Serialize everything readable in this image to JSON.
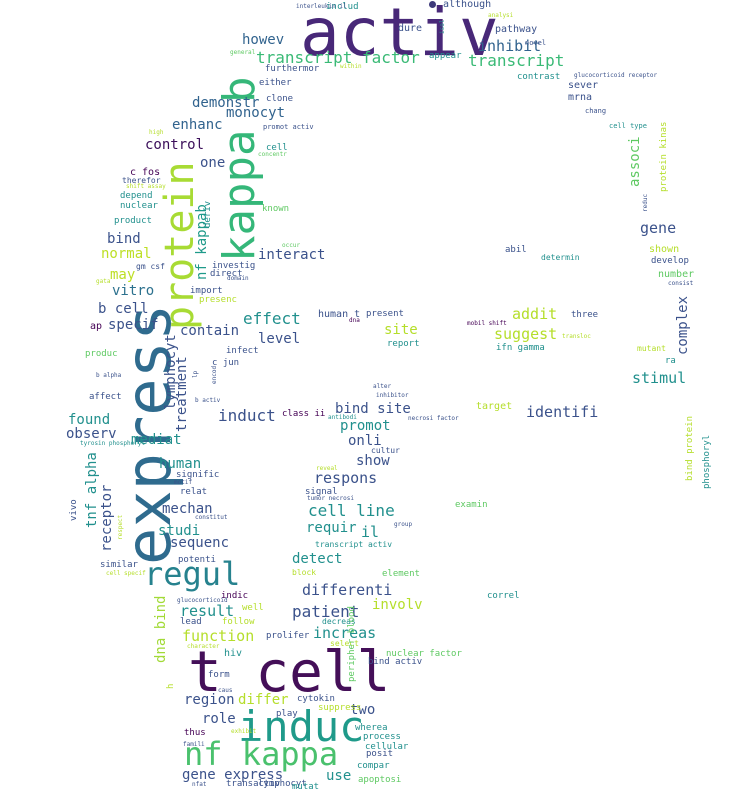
{
  "words": [
    {
      "t": "activ",
      "c": "#482878"
    },
    {
      "t": "express",
      "c": "#2f6b8e"
    },
    {
      "t": "kappa b",
      "c": "#35b779"
    },
    {
      "t": "protein",
      "c": "#a8db34"
    },
    {
      "t": "t cell",
      "c": "#440f58"
    },
    {
      "t": "induc",
      "c": "#1f9a8a"
    },
    {
      "t": "nf kappa",
      "c": "#4ac16d"
    },
    {
      "t": "regul",
      "c": "#26828e"
    },
    {
      "t": "transcript factor",
      "c": "#3aba76"
    },
    {
      "t": "transcript",
      "c": "#3aba76"
    },
    {
      "t": "inhibit",
      "c": "#31638e"
    },
    {
      "t": "howev",
      "c": "#31638e"
    },
    {
      "t": "demonstr",
      "c": "#31638e"
    },
    {
      "t": "monocyt",
      "c": "#31638e"
    },
    {
      "t": "enhanc",
      "c": "#31638e"
    },
    {
      "t": "control",
      "c": "#3b0f5a"
    },
    {
      "t": "one",
      "c": "#3b528b"
    },
    {
      "t": "c fos",
      "c": "#440154"
    },
    {
      "t": "bind",
      "c": "#3b528b"
    },
    {
      "t": "normal",
      "c": "#bddf26"
    },
    {
      "t": "may",
      "c": "#bddf26"
    },
    {
      "t": "vitro",
      "c": "#2c718e"
    },
    {
      "t": "b cell",
      "c": "#3b528b"
    },
    {
      "t": "specif",
      "c": "#3b528b"
    },
    {
      "t": "ap",
      "c": "#440154"
    },
    {
      "t": "nf kappab",
      "c": "#1f9a8a"
    },
    {
      "t": "interact",
      "c": "#3b528b"
    },
    {
      "t": "contain",
      "c": "#3b528b"
    },
    {
      "t": "effect",
      "c": "#21908d"
    },
    {
      "t": "level",
      "c": "#3b528b"
    },
    {
      "t": "lymphocyt",
      "c": "#3b528b"
    },
    {
      "t": "treatment",
      "c": "#3b528b"
    },
    {
      "t": "found",
      "c": "#21908d"
    },
    {
      "t": "observ",
      "c": "#3b528b"
    },
    {
      "t": "mediat",
      "c": "#21908d"
    },
    {
      "t": "induct",
      "c": "#3b528b"
    },
    {
      "t": "bind site",
      "c": "#3b528b"
    },
    {
      "t": "identifi",
      "c": "#3b528b"
    },
    {
      "t": "human",
      "c": "#21908d"
    },
    {
      "t": "tnf alpha",
      "c": "#21908d"
    },
    {
      "t": "receptor",
      "c": "#3b528b"
    },
    {
      "t": "mechan",
      "c": "#3b528b"
    },
    {
      "t": "studi",
      "c": "#21908d"
    },
    {
      "t": "sequenc",
      "c": "#3b528b"
    },
    {
      "t": "respons",
      "c": "#3b528b"
    },
    {
      "t": "cell line",
      "c": "#21908d"
    },
    {
      "t": "requir",
      "c": "#21908d"
    },
    {
      "t": "il",
      "c": "#21908d"
    },
    {
      "t": "show",
      "c": "#3b528b"
    },
    {
      "t": "onli",
      "c": "#3b528b"
    },
    {
      "t": "promot",
      "c": "#21908d"
    },
    {
      "t": "detect",
      "c": "#21908d"
    },
    {
      "t": "differenti",
      "c": "#3b528b"
    },
    {
      "t": "involv",
      "c": "#b5de2b"
    },
    {
      "t": "patient",
      "c": "#3b528b"
    },
    {
      "t": "increas",
      "c": "#21908d"
    },
    {
      "t": "result",
      "c": "#21908d"
    },
    {
      "t": "function",
      "c": "#b5de2b"
    },
    {
      "t": "dna bind",
      "c": "#a2da37"
    },
    {
      "t": "region",
      "c": "#3b528b"
    },
    {
      "t": "differ",
      "c": "#b5de2b"
    },
    {
      "t": "role",
      "c": "#3b528b"
    },
    {
      "t": "two",
      "c": "#3b528b"
    },
    {
      "t": "gene express",
      "c": "#3b528b"
    },
    {
      "t": "use",
      "c": "#21908d"
    },
    {
      "t": "site",
      "c": "#b5de2b"
    },
    {
      "t": "suggest",
      "c": "#b5de2b"
    },
    {
      "t": "addit",
      "c": "#b5de2b"
    },
    {
      "t": "gene",
      "c": "#3b528b"
    },
    {
      "t": "associ",
      "c": "#5ec962"
    },
    {
      "t": "stimul",
      "c": "#21908d"
    },
    {
      "t": "complex",
      "c": "#3b528b"
    },
    {
      "t": "although",
      "c": "#3b528b"
    },
    {
      "t": "includ",
      "c": "#21908d"
    },
    {
      "t": "dure",
      "c": "#3b528b"
    },
    {
      "t": "pathway",
      "c": "#3b528b"
    },
    {
      "t": "appear",
      "c": "#21908d"
    },
    {
      "t": "furthermor",
      "c": "#3b528b"
    },
    {
      "t": "either",
      "c": "#3b528b"
    },
    {
      "t": "clone",
      "c": "#3b528b"
    },
    {
      "t": "contrast",
      "c": "#21908d"
    },
    {
      "t": "sever",
      "c": "#3b528b"
    },
    {
      "t": "mrna",
      "c": "#3b528b"
    },
    {
      "t": "cell",
      "c": "#21908d"
    },
    {
      "t": "depend",
      "c": "#21908d"
    },
    {
      "t": "nuclear",
      "c": "#21908d"
    },
    {
      "t": "product",
      "c": "#21908d"
    },
    {
      "t": "known",
      "c": "#5ec962"
    },
    {
      "t": "investig",
      "c": "#3b528b"
    },
    {
      "t": "direct",
      "c": "#3b528b"
    },
    {
      "t": "import",
      "c": "#3b528b"
    },
    {
      "t": "presenc",
      "c": "#b5de2b"
    },
    {
      "t": "shown",
      "c": "#b5de2b"
    },
    {
      "t": "develop",
      "c": "#3b528b"
    },
    {
      "t": "number",
      "c": "#5ec962"
    },
    {
      "t": "abil",
      "c": "#3b528b"
    },
    {
      "t": "determin",
      "c": "#21908d"
    },
    {
      "t": "human t",
      "c": "#3b528b"
    },
    {
      "t": "present",
      "c": "#3b528b"
    },
    {
      "t": "three",
      "c": "#3b528b"
    },
    {
      "t": "report",
      "c": "#21908d"
    },
    {
      "t": "ifn gamma",
      "c": "#21908d"
    },
    {
      "t": "produc",
      "c": "#5ec962"
    },
    {
      "t": "infect",
      "c": "#3b528b"
    },
    {
      "t": "c jun",
      "c": "#3b528b"
    },
    {
      "t": "affect",
      "c": "#3b528b"
    },
    {
      "t": "target",
      "c": "#b5de2b"
    },
    {
      "t": "class ii",
      "c": "#440154"
    },
    {
      "t": "signific",
      "c": "#3b528b"
    },
    {
      "t": "relat",
      "c": "#3b528b"
    },
    {
      "t": "signal",
      "c": "#3b528b"
    },
    {
      "t": "transcript activ",
      "c": "#21908d"
    },
    {
      "t": "examin",
      "c": "#5ec962"
    },
    {
      "t": "potenti",
      "c": "#3b528b"
    },
    {
      "t": "similar",
      "c": "#3b528b"
    },
    {
      "t": "block",
      "c": "#b5de2b"
    },
    {
      "t": "element",
      "c": "#5ec962"
    },
    {
      "t": "indic",
      "c": "#440154"
    },
    {
      "t": "well",
      "c": "#b5de2b"
    },
    {
      "t": "lead",
      "c": "#3b528b"
    },
    {
      "t": "follow",
      "c": "#b5de2b"
    },
    {
      "t": "decreas",
      "c": "#21908d"
    },
    {
      "t": "select",
      "c": "#b5de2b"
    },
    {
      "t": "correl",
      "c": "#21908d"
    },
    {
      "t": "prolifer",
      "c": "#3b528b"
    },
    {
      "t": "hiv",
      "c": "#21908d"
    },
    {
      "t": "nuclear factor",
      "c": "#5ec962"
    },
    {
      "t": "bind activ",
      "c": "#3b528b"
    },
    {
      "t": "form",
      "c": "#3b528b"
    },
    {
      "t": "cytokin",
      "c": "#3b528b"
    },
    {
      "t": "suppress",
      "c": "#b5de2b"
    },
    {
      "t": "play",
      "c": "#3b528b"
    },
    {
      "t": "thus",
      "c": "#440154"
    },
    {
      "t": "wherea",
      "c": "#21908d"
    },
    {
      "t": "process",
      "c": "#21908d"
    },
    {
      "t": "cellular",
      "c": "#21908d"
    },
    {
      "t": "posit",
      "c": "#3b528b"
    },
    {
      "t": "compar",
      "c": "#21908d"
    },
    {
      "t": "apoptosi",
      "c": "#5ec962"
    },
    {
      "t": "lymphocyt",
      "c": "#3b528b"
    },
    {
      "t": "mutat",
      "c": "#21908d"
    },
    {
      "t": "transactiv",
      "c": "#3b528b"
    },
    {
      "t": "h",
      "c": "#b5de2b"
    },
    {
      "t": "peripher blood",
      "c": "#5ec962"
    },
    {
      "t": "vivo",
      "c": "#3b528b"
    },
    {
      "t": "bind protein",
      "c": "#b5de2b"
    },
    {
      "t": "phosphoryl",
      "c": "#21908d"
    },
    {
      "t": "protein kinas",
      "c": "#b5de2b"
    },
    {
      "t": "ra",
      "c": "#21908d"
    },
    {
      "t": "mutant",
      "c": "#b5de2b"
    },
    {
      "t": "deriv",
      "c": "#21908d"
    },
    {
      "t": "interleukin il",
      "c": "#3b528b"
    },
    {
      "t": "analysi",
      "c": "#b5de2b"
    },
    {
      "t": "general",
      "c": "#5ec962"
    },
    {
      "t": "within",
      "c": "#b5de2b"
    },
    {
      "t": "glucocorticoid receptor",
      "c": "#3b528b"
    },
    {
      "t": "chang",
      "c": "#3b528b"
    },
    {
      "t": "cell type",
      "c": "#21908d"
    },
    {
      "t": "high",
      "c": "#b5de2b"
    },
    {
      "t": "promot activ",
      "c": "#3b528b"
    },
    {
      "t": "concentr",
      "c": "#5ec962"
    },
    {
      "t": "therefor",
      "c": "#3b528b"
    },
    {
      "t": "shift assay",
      "c": "#b5de2b"
    },
    {
      "t": "gm csf",
      "c": "#3b528b"
    },
    {
      "t": "gata",
      "c": "#b5de2b"
    },
    {
      "t": "domain",
      "c": "#3b528b"
    },
    {
      "t": "occur",
      "c": "#5ec962"
    },
    {
      "t": "consist",
      "c": "#3b528b"
    },
    {
      "t": "reduc",
      "c": "#3b528b"
    },
    {
      "t": "dna",
      "c": "#440154"
    },
    {
      "t": "mobil shift",
      "c": "#440154"
    },
    {
      "t": "transloc",
      "c": "#b5de2b"
    },
    {
      "t": "alter",
      "c": "#3b528b"
    },
    {
      "t": "inhibitor",
      "c": "#3b528b"
    },
    {
      "t": "antibodi",
      "c": "#21908d"
    },
    {
      "t": "necrosi factor",
      "c": "#3b528b"
    },
    {
      "t": "cultur",
      "c": "#3b528b"
    },
    {
      "t": "reveal",
      "c": "#b5de2b"
    },
    {
      "t": "tumor necrosi",
      "c": "#3b528b"
    },
    {
      "t": "group",
      "c": "#3b528b"
    },
    {
      "t": "motif",
      "c": "#3b528b"
    },
    {
      "t": "constitut",
      "c": "#3b528b"
    },
    {
      "t": "b alpha",
      "c": "#3b528b"
    },
    {
      "t": "b activ",
      "c": "#3b528b"
    },
    {
      "t": "encod",
      "c": "#3b528b"
    },
    {
      "t": "lp",
      "c": "#3b528b"
    },
    {
      "t": "isol",
      "c": "#21908d"
    },
    {
      "t": "tyrosin phosphoryl",
      "c": "#21908d"
    },
    {
      "t": "respect",
      "c": "#b5de2b"
    },
    {
      "t": "cell specif",
      "c": "#b5de2b"
    },
    {
      "t": "glucocorticoid",
      "c": "#3b528b"
    },
    {
      "t": "character",
      "c": "#b5de2b"
    },
    {
      "t": "caus",
      "c": "#3b528b"
    },
    {
      "t": "exhibit",
      "c": "#b5de2b"
    },
    {
      "t": "famili",
      "c": "#3b528b"
    },
    {
      "t": "nfat",
      "c": "#3b528b"
    },
    {
      "t": "novel",
      "c": "#3b528b"
    },
    {
      "t": "distinct",
      "c": "#21908d"
    },
    {
      "t": "suggest",
      "c": "#3b528b"
    }
  ]
}
